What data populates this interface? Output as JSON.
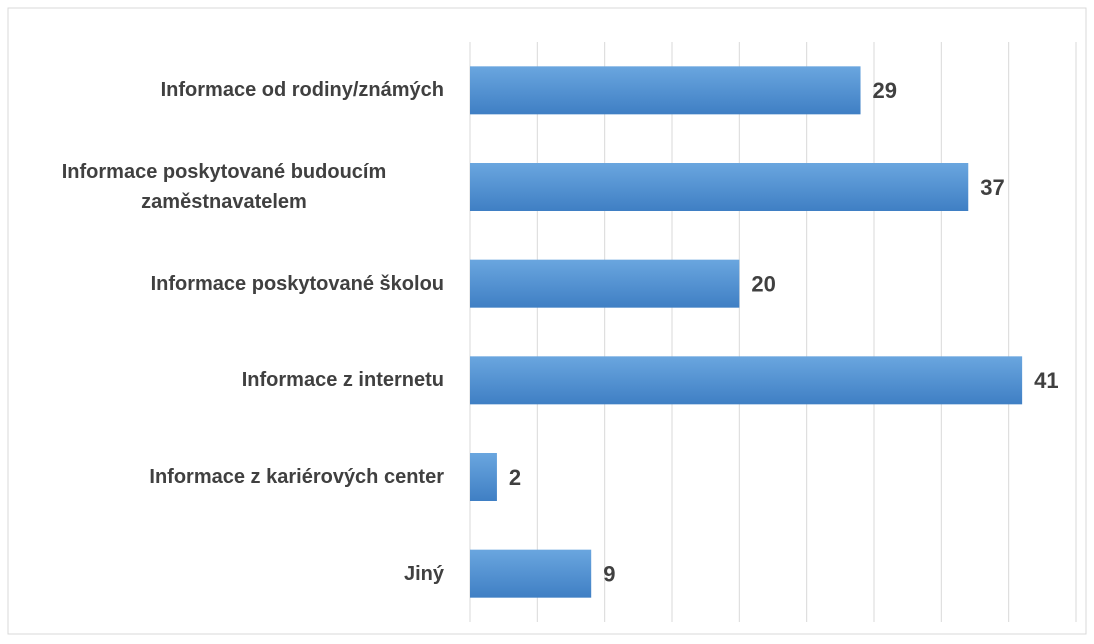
{
  "chart_data": {
    "type": "bar",
    "orientation": "horizontal",
    "categories": [
      "Informace od rodiny/známých",
      "Informace poskytované budoucím zaměstnavatelem",
      "Informace poskytované školou",
      "Informace z internetu",
      "Informace z kariérových center",
      "Jiný"
    ],
    "values": [
      29,
      37,
      20,
      41,
      2,
      9
    ],
    "color": "#4a8ad0",
    "xlim": [
      0,
      45
    ],
    "xticks": [
      0,
      5,
      10,
      15,
      20,
      25,
      30,
      35,
      40,
      45
    ],
    "grid": true
  }
}
